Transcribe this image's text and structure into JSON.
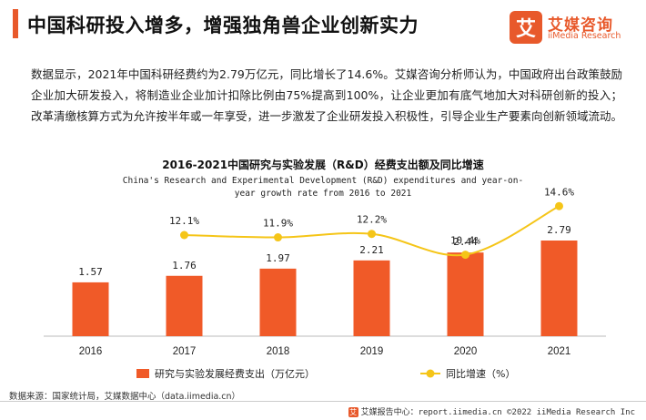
{
  "header": {
    "title": "中国科研投入增多，增强独角兽企业创新实力",
    "logo_mark": "艾",
    "logo_name": "艾媒咨询",
    "logo_sub": "iiMedia Research"
  },
  "intro": "数据显示，2021年中国科研经费约为2.79万亿元，同比增长了14.6%。艾媒咨询分析师认为，中国政府出台政策鼓励企业加大研发投入，将制造业企业加计扣除比例由75%提高到100%，让企业更加有底气地加大对科研创新的投入；改革清缴核算方式为允许按半年或一年享受，进一步激发了企业研发投入积极性，引导企业生产要素向创新领域流动。",
  "chart_data": {
    "type": "bar",
    "title": "2016-2021中国研究与实验发展（R&D）经费支出额及同比增速",
    "subtitle": "China's Research  and Experimental Development (R&D) expenditures and year-on-year growth rate from 2016 to 2021",
    "categories": [
      "2016",
      "2017",
      "2018",
      "2019",
      "2020",
      "2021"
    ],
    "series": [
      {
        "name": "研究与实验发展经费支出（万亿元）",
        "type": "bar",
        "color": "#f05a28",
        "values": [
          1.57,
          1.76,
          1.97,
          2.21,
          2.44,
          2.79
        ],
        "labels": [
          "1.57",
          "1.76",
          "1.97",
          "2.21",
          "2.44",
          "2.79"
        ]
      },
      {
        "name": "同比增速（%）",
        "type": "line",
        "color": "#f5c518",
        "values": [
          null,
          12.1,
          11.9,
          12.2,
          10.4,
          14.6
        ],
        "labels": [
          "",
          "12.1%",
          "11.9%",
          "12.2%",
          "10.4%",
          "14.6%"
        ]
      }
    ],
    "bar_ylim": [
      0,
      4.2
    ],
    "line_ylim": [
      6.0,
      17.6
    ],
    "legend_position": "bottom",
    "grid": false
  },
  "footer": {
    "source": "数据来源：国家统计局，艾媒数据中心（data.iimedia.cn）",
    "logo_mark": "艾",
    "right": "艾媒报告中心：report.iimedia.cn  ©2022  iiMedia Research  Inc"
  }
}
